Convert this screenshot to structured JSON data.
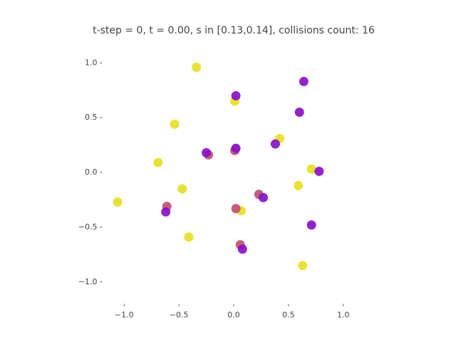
{
  "chart_data": {
    "type": "scatter",
    "title": "t-step = 0, t = 0.00, s in [0.13,0.14], collisions count: 16",
    "xlim": [
      -1.2,
      1.2
    ],
    "ylim": [
      -1.2,
      1.2
    ],
    "xticks": [
      {
        "value": -1.0,
        "label": "−1.0"
      },
      {
        "value": -0.5,
        "label": "−0.5"
      },
      {
        "value": 0.0,
        "label": "0.0"
      },
      {
        "value": 0.5,
        "label": "0.5"
      },
      {
        "value": 1.0,
        "label": "1.0"
      }
    ],
    "yticks": [
      {
        "value": -1.0,
        "label": "−1.0"
      },
      {
        "value": -0.5,
        "label": "−0.5"
      },
      {
        "value": 0.0,
        "label": "0.0"
      },
      {
        "value": 0.5,
        "label": "0.5"
      },
      {
        "value": 1.0,
        "label": "1.0"
      }
    ],
    "series": [
      {
        "color": "#e8e020",
        "x": [
          -0.34,
          -0.54,
          -0.69,
          -1.06,
          -0.47,
          0.01,
          0.42,
          0.59,
          0.71,
          0.07,
          -0.41,
          0.63
        ],
        "y": [
          0.96,
          0.44,
          0.09,
          -0.27,
          -0.15,
          0.65,
          0.31,
          -0.12,
          0.03,
          -0.35,
          -0.59,
          -0.85
        ]
      },
      {
        "color": "#c0506a",
        "x": [
          0.01,
          -0.23,
          0.23,
          -0.61,
          0.02,
          0.06
        ],
        "y": [
          0.2,
          0.16,
          -0.2,
          -0.31,
          -0.33,
          -0.66
        ]
      },
      {
        "color": "#8a10c8",
        "x": [
          0.64,
          0.02,
          0.6,
          0.38,
          -0.25,
          0.02,
          0.78,
          0.27,
          -0.62,
          0.08,
          0.71
        ],
        "y": [
          0.83,
          0.7,
          0.55,
          0.26,
          0.18,
          0.22,
          0.01,
          -0.23,
          -0.36,
          -0.7,
          -0.48
        ]
      }
    ]
  }
}
